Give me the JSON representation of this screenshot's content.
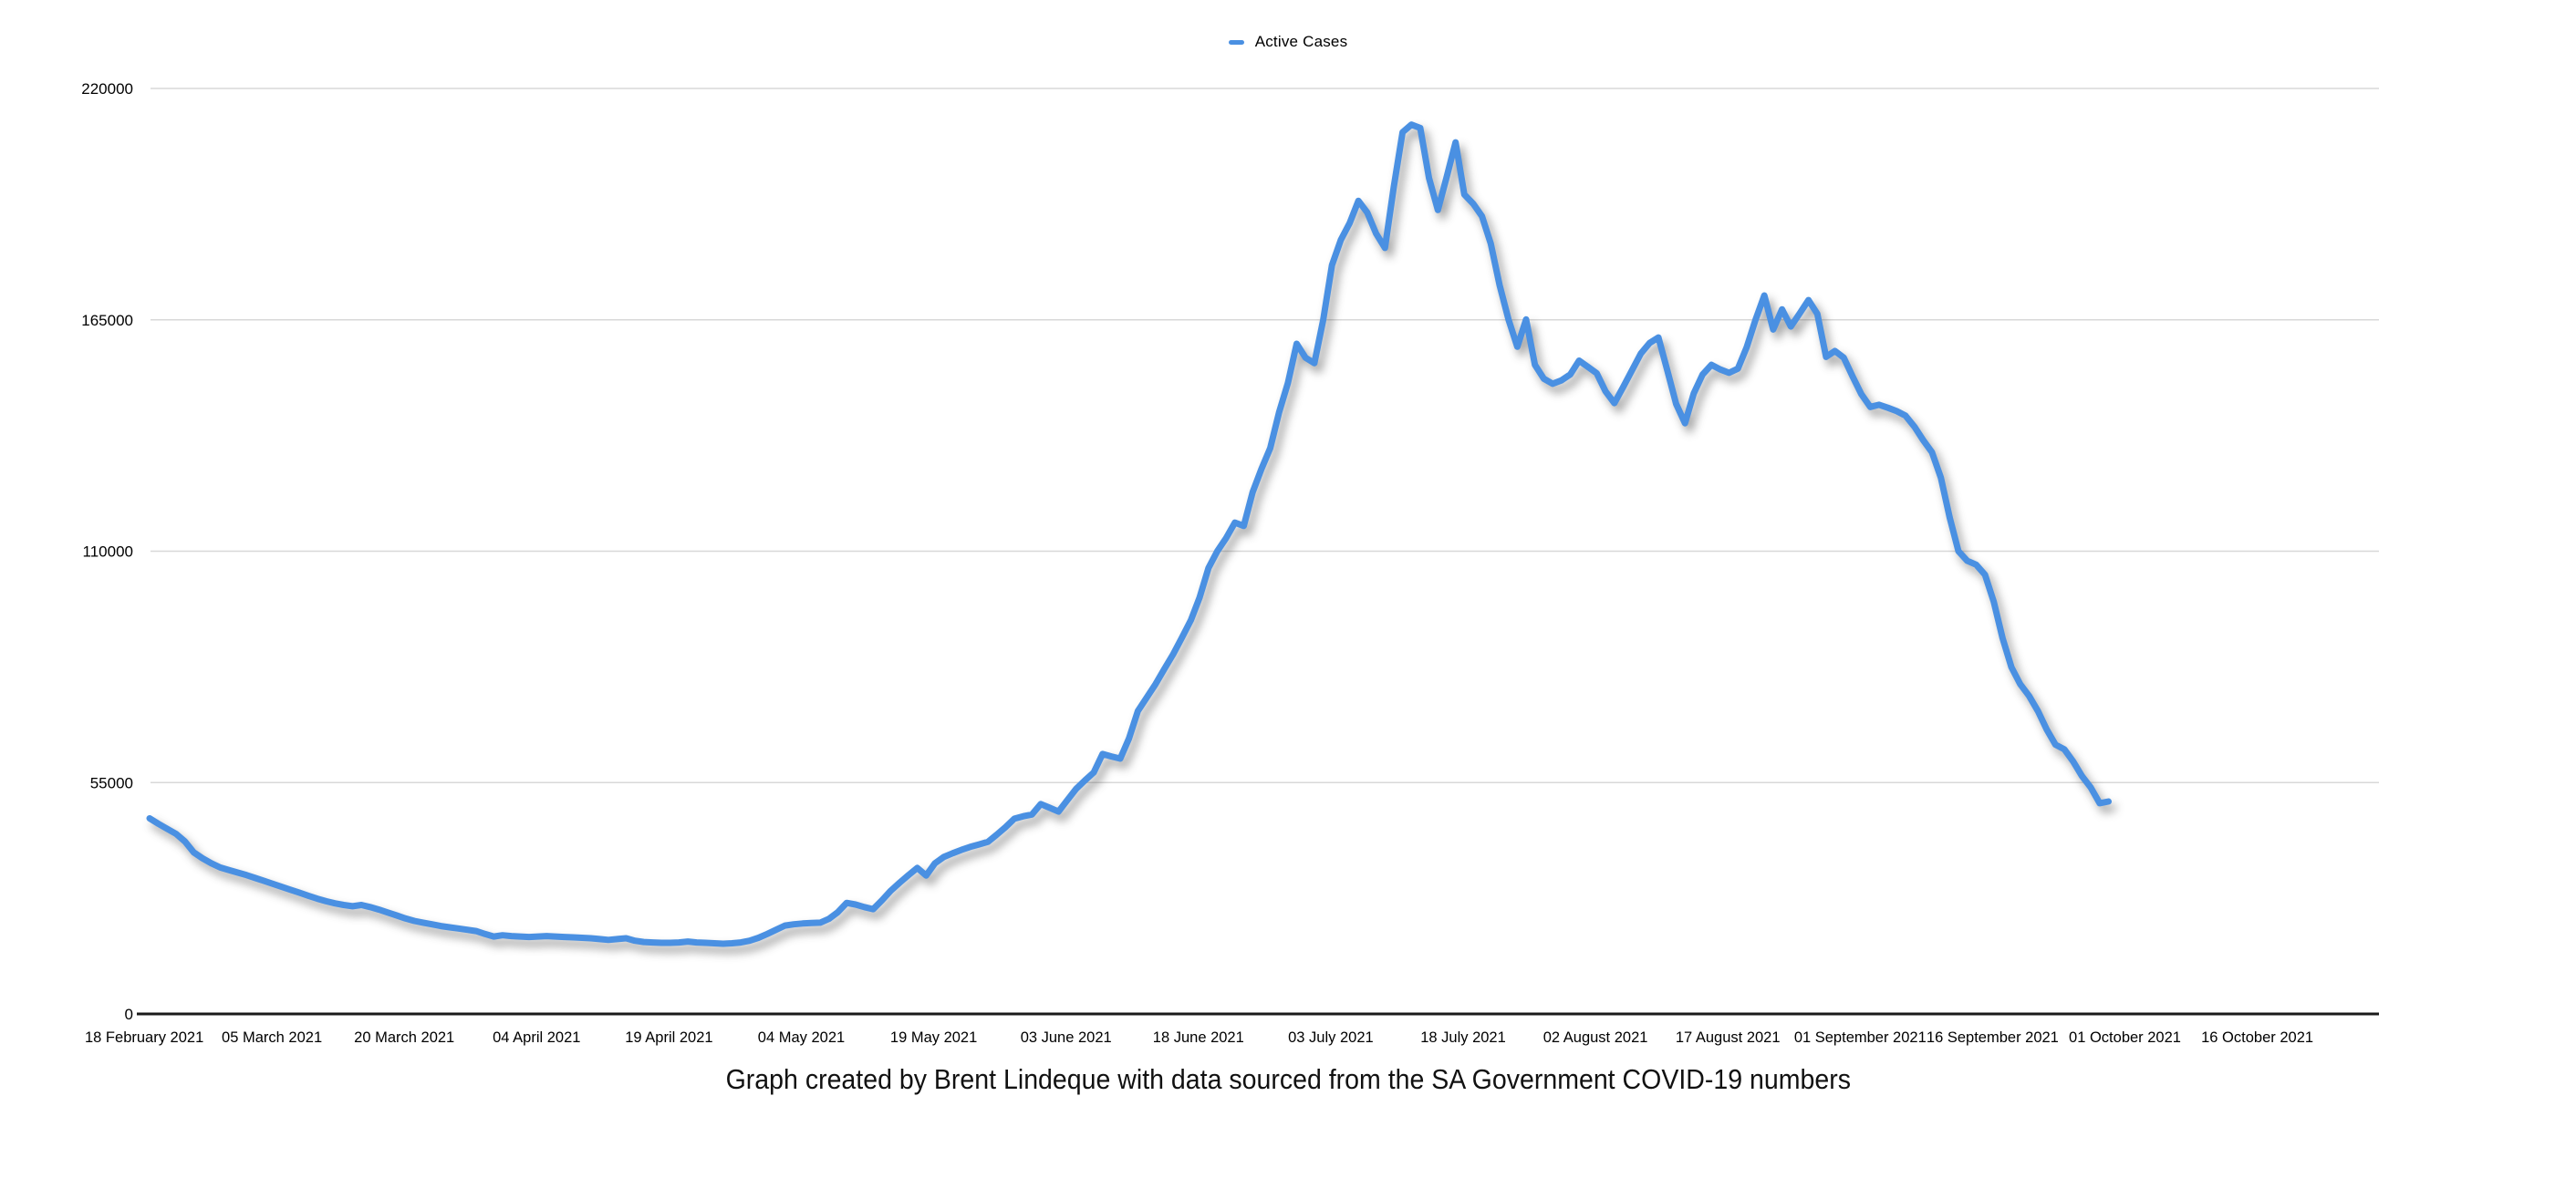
{
  "page": {
    "background": "#ffffff"
  },
  "legend": {
    "label": "Active Cases",
    "marker_color": "#4a90e2"
  },
  "caption": "Graph created by Brent Lindeque with data sourced from the SA Government COVID-19 numbers",
  "chart_data": {
    "type": "line",
    "title": "",
    "xlabel": "",
    "ylabel": "",
    "series_name": "Active Cases",
    "line_color": "#4a90e2",
    "grid": "horizontal",
    "legend_position": "top-center",
    "ylim": [
      0,
      220000
    ],
    "y_tick_values": [
      0,
      55000,
      110000,
      165000,
      220000
    ],
    "y_tick_labels": [
      "0",
      "55000",
      "110000",
      "165000",
      "220000"
    ],
    "x_tick_labels": [
      "18 February 2021",
      "05 March 2021",
      "20 March 2021",
      "04 April 2021",
      "19 April 2021",
      "04 May 2021",
      "19 May 2021",
      "03 June 2021",
      "18 June 2021",
      "03 July 2021",
      "18 July 2021",
      "02 August 2021",
      "17 August 2021",
      "01 September 2021",
      "16 September 2021",
      "01 October 2021",
      "16 October 2021"
    ],
    "x_tick_interval_days": 15,
    "start_date": "2021-02-18",
    "end_date": "2021-09-28",
    "frequency": "daily",
    "values": [
      46500,
      45200,
      44000,
      42800,
      41000,
      38400,
      37000,
      35800,
      34800,
      34200,
      33600,
      33000,
      32300,
      31600,
      30900,
      30200,
      29500,
      28800,
      28100,
      27400,
      26800,
      26300,
      25900,
      25600,
      25900,
      25400,
      24800,
      24100,
      23400,
      22700,
      22100,
      21700,
      21300,
      20900,
      20600,
      20300,
      20000,
      19700,
      19000,
      18400,
      18700,
      18500,
      18400,
      18300,
      18400,
      18500,
      18400,
      18300,
      18200,
      18100,
      18000,
      17800,
      17600,
      17800,
      18000,
      17400,
      17100,
      17000,
      16900,
      16900,
      17000,
      17200,
      17000,
      16900,
      16800,
      16700,
      16800,
      17000,
      17400,
      18100,
      19000,
      20000,
      21000,
      21300,
      21500,
      21600,
      21700,
      22600,
      24200,
      26400,
      26000,
      25400,
      24900,
      27000,
      29300,
      31200,
      33000,
      34700,
      32900,
      35800,
      37300,
      38200,
      39000,
      39700,
      40300,
      40900,
      42600,
      44400,
      46400,
      47000,
      47400,
      49900,
      49000,
      48100,
      50800,
      53500,
      55500,
      57400,
      61800,
      61200,
      60700,
      65500,
      72000,
      75200,
      78400,
      82000,
      85500,
      89500,
      93600,
      99000,
      106000,
      110000,
      113100,
      116800,
      116000,
      124000,
      129500,
      134500,
      143000,
      150000,
      159300,
      156000,
      154700,
      165000,
      178000,
      184000,
      188000,
      193300,
      190500,
      185500,
      182100,
      196500,
      209600,
      211400,
      210600,
      198700,
      191100,
      199000,
      207200,
      194800,
      192600,
      189600,
      183100,
      173200,
      165100,
      158600,
      165100,
      154300,
      151000,
      149800,
      150600,
      152000,
      155300,
      153800,
      152300,
      148000,
      145200,
      149000,
      153000,
      157000,
      159500,
      160800,
      153000,
      145000,
      140400,
      147500,
      152000,
      154300,
      153200,
      152400,
      153400,
      158500,
      165000,
      170800,
      162700,
      167500,
      163400,
      166500,
      169700,
      166400,
      156200,
      157600,
      156000,
      151500,
      147300,
      144300,
      144800,
      144100,
      143300,
      142200,
      139600,
      136400,
      133500,
      127500,
      118000,
      110000,
      107700,
      106800,
      104400,
      98000,
      89300,
      82400,
      78400,
      75600,
      72000,
      67600,
      64000,
      62900,
      60000,
      56500,
      53800,
      50100,
      50500
    ]
  }
}
